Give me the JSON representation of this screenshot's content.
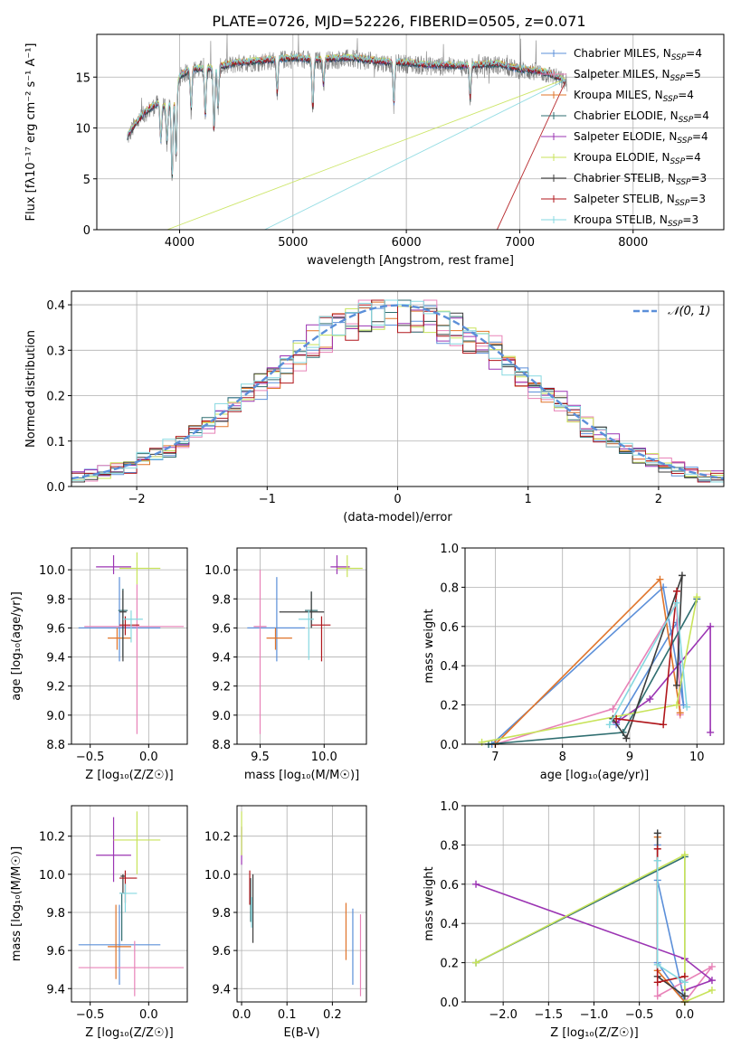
{
  "figure": {
    "title": "PLATE=0726, MJD=52226, FIBERID=0505, z=0.071"
  },
  "colors": {
    "Chabrier MILES": "#5b8fd9",
    "Salpeter MILES": "#e883b8",
    "Kroupa MILES": "#e0742a",
    "Chabrier ELODIE": "#2f6e70",
    "Salpeter ELODIE": "#9b34b3",
    "Kroupa ELODIE": "#c8e35a",
    "Chabrier STELIB": "#3b3b3b",
    "Salpeter STELIB": "#b0161b",
    "Kroupa STELIB": "#86d8e0",
    "data": "#808080"
  },
  "chart_data": [
    {
      "id": "spectrum",
      "type": "line",
      "xlabel": "wavelength [Angstrom, rest frame]",
      "ylabel": "Flux [fλ10⁻¹⁷ erg cm⁻² s⁻¹ A⁻¹]",
      "xlim": [
        3270,
        8800
      ],
      "ylim": [
        0,
        19.2
      ],
      "xticks": [
        4000,
        5000,
        6000,
        7000,
        8000
      ],
      "yticks": [
        0,
        5,
        10,
        15
      ],
      "legend": [
        "Chabrier MILES, N_SSP=4",
        "Salpeter MILES, N_SSP=5",
        "Kroupa MILES, N_SSP=4",
        "Chabrier ELODIE, N_SSP=4",
        "Salpeter ELODIE, N_SSP=4",
        "Kroupa ELODIE, N_SSP=4",
        "Chabrier STELIB, N_SSP=3",
        "Salpeter STELIB, N_SSP=3",
        "Kroupa STELIB, N_SSP=3"
      ],
      "legend_position": "top-right",
      "continuum": [
        [
          3540,
          9
        ],
        [
          3600,
          10.2
        ],
        [
          3700,
          11.5
        ],
        [
          3800,
          12.3
        ],
        [
          3900,
          12
        ],
        [
          3950,
          12.8
        ],
        [
          4000,
          15
        ],
        [
          4100,
          15.7
        ],
        [
          4300,
          15.8
        ],
        [
          4500,
          16.3
        ],
        [
          5000,
          16.8
        ],
        [
          5200,
          16.6
        ],
        [
          5500,
          16.8
        ],
        [
          5800,
          16.4
        ],
        [
          6000,
          16.3
        ],
        [
          6200,
          16.1
        ],
        [
          6500,
          16
        ],
        [
          6800,
          16.2
        ],
        [
          7000,
          15.7
        ],
        [
          7200,
          15.4
        ],
        [
          7300,
          15.1
        ],
        [
          7400,
          14.5
        ]
      ],
      "model_end_points": [
        {
          "model": "Kroupa ELODIE",
          "wave": 3890,
          "flux": 0
        },
        {
          "model": "Kroupa STELIB",
          "wave": 4750,
          "flux": 0
        },
        {
          "model": "Salpeter STELIB",
          "wave": 6800,
          "flux": 0
        }
      ]
    },
    {
      "id": "residuals",
      "type": "line",
      "xlabel": "(data-model)/error",
      "ylabel": "Normed distribution",
      "xlim": [
        -2.5,
        2.5
      ],
      "ylim": [
        0,
        0.43
      ],
      "xticks": [
        -2,
        -1,
        0,
        1,
        2
      ],
      "yticks": [
        0,
        0.1,
        0.2,
        0.3,
        0.4
      ],
      "legend": [
        "𝒩(0, 1)"
      ],
      "legend_position": "top-right",
      "bin_width": 0.1
    },
    {
      "id": "age_vs_Z",
      "type": "scatter",
      "xlabel": "Z [log₁₀(Z/Z☉)]",
      "ylabel": "age  [log₁₀(age/yr)]",
      "xlim": [
        -0.66,
        0.33
      ],
      "ylim": [
        8.8,
        10.15
      ],
      "xticks": [
        -0.5,
        0.0
      ],
      "yticks": [
        8.8,
        9.0,
        9.2,
        9.4,
        9.6,
        9.8,
        10.0
      ],
      "points": [
        {
          "model": "Chabrier MILES",
          "x": -0.25,
          "y": 9.6,
          "xlo": -0.6,
          "xhi": 0.1,
          "ylo": 9.37,
          "yhi": 9.95
        },
        {
          "model": "Salpeter MILES",
          "x": -0.1,
          "y": 9.61,
          "xlo": -0.55,
          "xhi": 0.3,
          "ylo": 8.87,
          "yhi": 9.9
        },
        {
          "model": "Kroupa MILES",
          "x": -0.27,
          "y": 9.53,
          "xlo": -0.35,
          "xhi": -0.15,
          "ylo": 9.45,
          "yhi": 9.6
        },
        {
          "model": "Chabrier ELODIE",
          "x": -0.22,
          "y": 9.72,
          "xlo": -0.26,
          "xhi": -0.18,
          "ylo": 9.4,
          "yhi": 9.87
        },
        {
          "model": "Salpeter ELODIE",
          "x": -0.3,
          "y": 10.02,
          "xlo": -0.45,
          "xhi": -0.15,
          "ylo": 9.97,
          "yhi": 10.1
        },
        {
          "model": "Kroupa ELODIE",
          "x": -0.1,
          "y": 10.01,
          "xlo": -0.25,
          "xhi": 0.1,
          "ylo": 9.9,
          "yhi": 10.12
        },
        {
          "model": "Chabrier STELIB",
          "x": -0.22,
          "y": 9.71,
          "xlo": -0.25,
          "xhi": -0.19,
          "ylo": 9.37,
          "yhi": 9.86
        },
        {
          "model": "Salpeter STELIB",
          "x": -0.2,
          "y": 9.62,
          "xlo": -0.25,
          "xhi": -0.08,
          "ylo": 9.55,
          "yhi": 9.68
        },
        {
          "model": "Kroupa STELIB",
          "x": -0.15,
          "y": 9.66,
          "xlo": -0.22,
          "xhi": -0.05,
          "ylo": 9.5,
          "yhi": 9.72
        }
      ]
    },
    {
      "id": "age_vs_mass",
      "type": "scatter",
      "xlabel": "mass [log₁₀(M/M☉)]",
      "ylabel": "",
      "xlim": [
        9.32,
        10.33
      ],
      "ylim": [
        8.8,
        10.15
      ],
      "xticks": [
        9.5,
        10.0
      ],
      "yticks": [
        8.8,
        9.0,
        9.2,
        9.4,
        9.6,
        9.8,
        10.0
      ],
      "points": [
        {
          "model": "Chabrier MILES",
          "x": 9.63,
          "y": 9.6,
          "xlo": 9.4,
          "xhi": 9.85,
          "ylo": 9.37,
          "yhi": 9.95
        },
        {
          "model": "Salpeter MILES",
          "x": 9.5,
          "y": 9.61,
          "xlo": 9.45,
          "xhi": 9.55,
          "ylo": 8.87,
          "yhi": 10.0
        },
        {
          "model": "Kroupa MILES",
          "x": 9.62,
          "y": 9.53,
          "xlo": 9.55,
          "xhi": 9.75,
          "ylo": 9.45,
          "yhi": 9.6
        },
        {
          "model": "Chabrier ELODIE",
          "x": 9.9,
          "y": 9.72,
          "xlo": 9.85,
          "xhi": 9.95,
          "ylo": 9.6,
          "yhi": 9.85
        },
        {
          "model": "Salpeter ELODIE",
          "x": 10.1,
          "y": 10.02,
          "xlo": 10.05,
          "xhi": 10.2,
          "ylo": 9.97,
          "yhi": 10.1
        },
        {
          "model": "Kroupa ELODIE",
          "x": 10.18,
          "y": 10.01,
          "xlo": 10.1,
          "xhi": 10.3,
          "ylo": 9.95,
          "yhi": 10.1
        },
        {
          "model": "Chabrier STELIB",
          "x": 9.9,
          "y": 9.71,
          "xlo": 9.65,
          "xhi": 10.0,
          "ylo": 9.6,
          "yhi": 9.85
        },
        {
          "model": "Salpeter STELIB",
          "x": 9.98,
          "y": 9.62,
          "xlo": 9.9,
          "xhi": 10.05,
          "ylo": 9.37,
          "yhi": 9.68
        },
        {
          "model": "Kroupa STELIB",
          "x": 9.88,
          "y": 9.66,
          "xlo": 9.8,
          "xhi": 9.92,
          "ylo": 9.38,
          "yhi": 9.72
        }
      ]
    },
    {
      "id": "weight_vs_age",
      "type": "line",
      "xlabel": "age  [log₁₀(age/yr)]",
      "ylabel": "mass weight",
      "xlim": [
        6.55,
        10.4
      ],
      "ylim": [
        0,
        1.0
      ],
      "xticks": [
        7,
        8,
        9,
        10
      ],
      "yticks": [
        0.0,
        0.2,
        0.4,
        0.6,
        0.8,
        1.0
      ],
      "series": [
        {
          "model": "Chabrier MILES",
          "points": [
            [
              6.95,
              0.0
            ],
            [
              9.5,
              0.8
            ],
            [
              9.8,
              0.2
            ],
            [
              9.7,
              0.62
            ],
            [
              8.8,
              0.1
            ]
          ]
        },
        {
          "model": "Salpeter MILES",
          "points": [
            [
              7.0,
              0.0
            ],
            [
              8.75,
              0.18
            ],
            [
              9.7,
              0.72
            ],
            [
              9.75,
              0.15
            ]
          ]
        },
        {
          "model": "Kroupa MILES",
          "points": [
            [
              7.0,
              0.0
            ],
            [
              9.45,
              0.84
            ],
            [
              9.75,
              0.16
            ]
          ]
        },
        {
          "model": "Chabrier ELODIE",
          "points": [
            [
              6.9,
              0.0
            ],
            [
              8.9,
              0.06
            ],
            [
              10.0,
              0.74
            ]
          ]
        },
        {
          "model": "Salpeter ELODIE",
          "points": [
            [
              8.8,
              0.11
            ],
            [
              9.3,
              0.23
            ],
            [
              10.2,
              0.6
            ],
            [
              10.2,
              0.06
            ]
          ]
        },
        {
          "model": "Kroupa ELODIE",
          "points": [
            [
              6.8,
              0.01
            ],
            [
              9.7,
              0.2
            ],
            [
              10.0,
              0.75
            ]
          ]
        },
        {
          "model": "Chabrier STELIB",
          "points": [
            [
              8.75,
              0.13
            ],
            [
              8.95,
              0.03
            ],
            [
              9.78,
              0.86
            ],
            [
              9.7,
              0.3
            ]
          ]
        },
        {
          "model": "Salpeter STELIB",
          "points": [
            [
              8.8,
              0.13
            ],
            [
              9.5,
              0.1
            ],
            [
              9.7,
              0.78
            ]
          ]
        },
        {
          "model": "Kroupa STELIB",
          "points": [
            [
              8.7,
              0.1
            ],
            [
              9.7,
              0.72
            ],
            [
              9.85,
              0.19
            ]
          ]
        }
      ]
    },
    {
      "id": "mass_vs_Z",
      "type": "scatter",
      "xlabel": "Z [log₁₀(Z/Z☉)]",
      "ylabel": "mass [log₁₀(M/M☉)]",
      "xlim": [
        -0.66,
        0.33
      ],
      "ylim": [
        9.33,
        10.36
      ],
      "xticks": [
        -0.5,
        0.0
      ],
      "yticks": [
        9.4,
        9.6,
        9.8,
        10.0,
        10.2
      ],
      "points": [
        {
          "model": "Chabrier MILES",
          "x": -0.25,
          "y": 9.63,
          "xlo": -0.6,
          "xhi": 0.1,
          "ylo": 9.42,
          "yhi": 9.84
        },
        {
          "model": "Salpeter MILES",
          "x": -0.12,
          "y": 9.51,
          "xlo": -0.6,
          "xhi": 0.3,
          "ylo": 9.36,
          "yhi": 9.65
        },
        {
          "model": "Kroupa MILES",
          "x": -0.28,
          "y": 9.62,
          "xlo": -0.35,
          "xhi": -0.15,
          "ylo": 9.45,
          "yhi": 9.84
        },
        {
          "model": "Chabrier ELODIE",
          "x": -0.23,
          "y": 9.9,
          "xlo": -0.25,
          "xhi": -0.2,
          "ylo": 9.65,
          "yhi": 9.9
        },
        {
          "model": "Salpeter ELODIE",
          "x": -0.3,
          "y": 10.1,
          "xlo": -0.45,
          "xhi": -0.15,
          "ylo": 9.96,
          "yhi": 10.3
        },
        {
          "model": "Kroupa ELODIE",
          "x": -0.1,
          "y": 10.18,
          "xlo": -0.3,
          "xhi": 0.1,
          "ylo": 10.0,
          "yhi": 10.33
        },
        {
          "model": "Chabrier STELIB",
          "x": -0.22,
          "y": 9.99,
          "xlo": -0.24,
          "xhi": -0.2,
          "ylo": 9.9,
          "yhi": 10.0
        },
        {
          "model": "Salpeter STELIB",
          "x": -0.2,
          "y": 9.98,
          "xlo": -0.25,
          "xhi": -0.1,
          "ylo": 9.85,
          "yhi": 10.02
        },
        {
          "model": "Kroupa STELIB",
          "x": -0.2,
          "y": 9.9,
          "xlo": -0.25,
          "xhi": -0.1,
          "ylo": 9.8,
          "yhi": 9.95
        }
      ]
    },
    {
      "id": "mass_vs_ebv",
      "type": "scatter",
      "xlabel": "E(B-V)",
      "ylabel": "",
      "xlim": [
        -0.01,
        0.275
      ],
      "ylim": [
        9.33,
        10.36
      ],
      "xticks": [
        0.0,
        0.1,
        0.2
      ],
      "yticks": [
        9.4,
        9.6,
        9.8,
        10.0,
        10.2
      ],
      "points": [
        {
          "model": "Chabrier MILES",
          "x": 0.245,
          "y": 9.6,
          "ylo": 9.42,
          "yhi": 9.82
        },
        {
          "model": "Salpeter MILES",
          "x": 0.262,
          "y": 9.55,
          "ylo": 9.36,
          "yhi": 9.79
        },
        {
          "model": "Kroupa MILES",
          "x": 0.23,
          "y": 9.7,
          "ylo": 9.55,
          "yhi": 9.85
        },
        {
          "model": "Chabrier ELODIE",
          "x": 0.02,
          "y": 9.86,
          "ylo": 9.75,
          "yhi": 9.98
        },
        {
          "model": "Salpeter ELODIE",
          "x": 0.0,
          "y": 10.15,
          "ylo": 10.05,
          "yhi": 10.25
        },
        {
          "model": "Kroupa ELODIE",
          "x": 0.0,
          "y": 10.2,
          "ylo": 10.1,
          "yhi": 10.33
        },
        {
          "model": "Chabrier STELIB",
          "x": 0.025,
          "y": 9.82,
          "ylo": 9.64,
          "yhi": 10.0
        },
        {
          "model": "Salpeter STELIB",
          "x": 0.018,
          "y": 9.92,
          "ylo": 9.84,
          "yhi": 10.02
        },
        {
          "model": "Kroupa STELIB",
          "x": 0.022,
          "y": 9.8,
          "ylo": 9.72,
          "yhi": 9.88
        }
      ]
    },
    {
      "id": "weight_vs_Z",
      "type": "line",
      "xlabel": "Z [log₁₀(Z/Z☉)]",
      "ylabel": "mass weight",
      "xlim": [
        -2.42,
        0.43
      ],
      "ylim": [
        0,
        1.0
      ],
      "xticks": [
        -2.0,
        -1.5,
        -1.0,
        -0.5,
        0.0
      ],
      "yticks": [
        0.0,
        0.2,
        0.4,
        0.6,
        0.8,
        1.0
      ],
      "series": [
        {
          "model": "Chabrier MILES",
          "points": [
            [
              -0.3,
              0.8
            ],
            [
              -0.3,
              0.2
            ],
            [
              0.0,
              0.0
            ],
            [
              -0.3,
              0.62
            ]
          ]
        },
        {
          "model": "Salpeter MILES",
          "points": [
            [
              -0.3,
              0.72
            ],
            [
              -0.3,
              0.03
            ],
            [
              0.3,
              0.18
            ],
            [
              0.0,
              0.0
            ]
          ]
        },
        {
          "model": "Kroupa MILES",
          "points": [
            [
              -0.3,
              0.84
            ],
            [
              -0.3,
              0.16
            ],
            [
              0.0,
              0.0
            ]
          ]
        },
        {
          "model": "Chabrier ELODIE",
          "points": [
            [
              -2.3,
              0.2
            ],
            [
              0.0,
              0.74
            ],
            [
              0.0,
              0.06
            ]
          ]
        },
        {
          "model": "Salpeter ELODIE",
          "points": [
            [
              -2.3,
              0.6
            ],
            [
              0.0,
              0.22
            ],
            [
              0.3,
              0.11
            ],
            [
              0.0,
              0.06
            ]
          ]
        },
        {
          "model": "Kroupa ELODIE",
          "points": [
            [
              -2.3,
              0.2
            ],
            [
              0.0,
              0.75
            ],
            [
              0.0,
              0.0
            ],
            [
              0.3,
              0.06
            ]
          ]
        },
        {
          "model": "Chabrier STELIB",
          "points": [
            [
              -0.3,
              0.86
            ],
            [
              -0.3,
              0.13
            ],
            [
              0.0,
              0.03
            ]
          ]
        },
        {
          "model": "Salpeter STELIB",
          "points": [
            [
              -0.3,
              0.78
            ],
            [
              -0.3,
              0.1
            ],
            [
              0.0,
              0.13
            ]
          ]
        },
        {
          "model": "Kroupa STELIB",
          "points": [
            [
              -0.3,
              0.72
            ],
            [
              -0.3,
              0.19
            ],
            [
              0.0,
              0.1
            ]
          ]
        }
      ]
    }
  ]
}
